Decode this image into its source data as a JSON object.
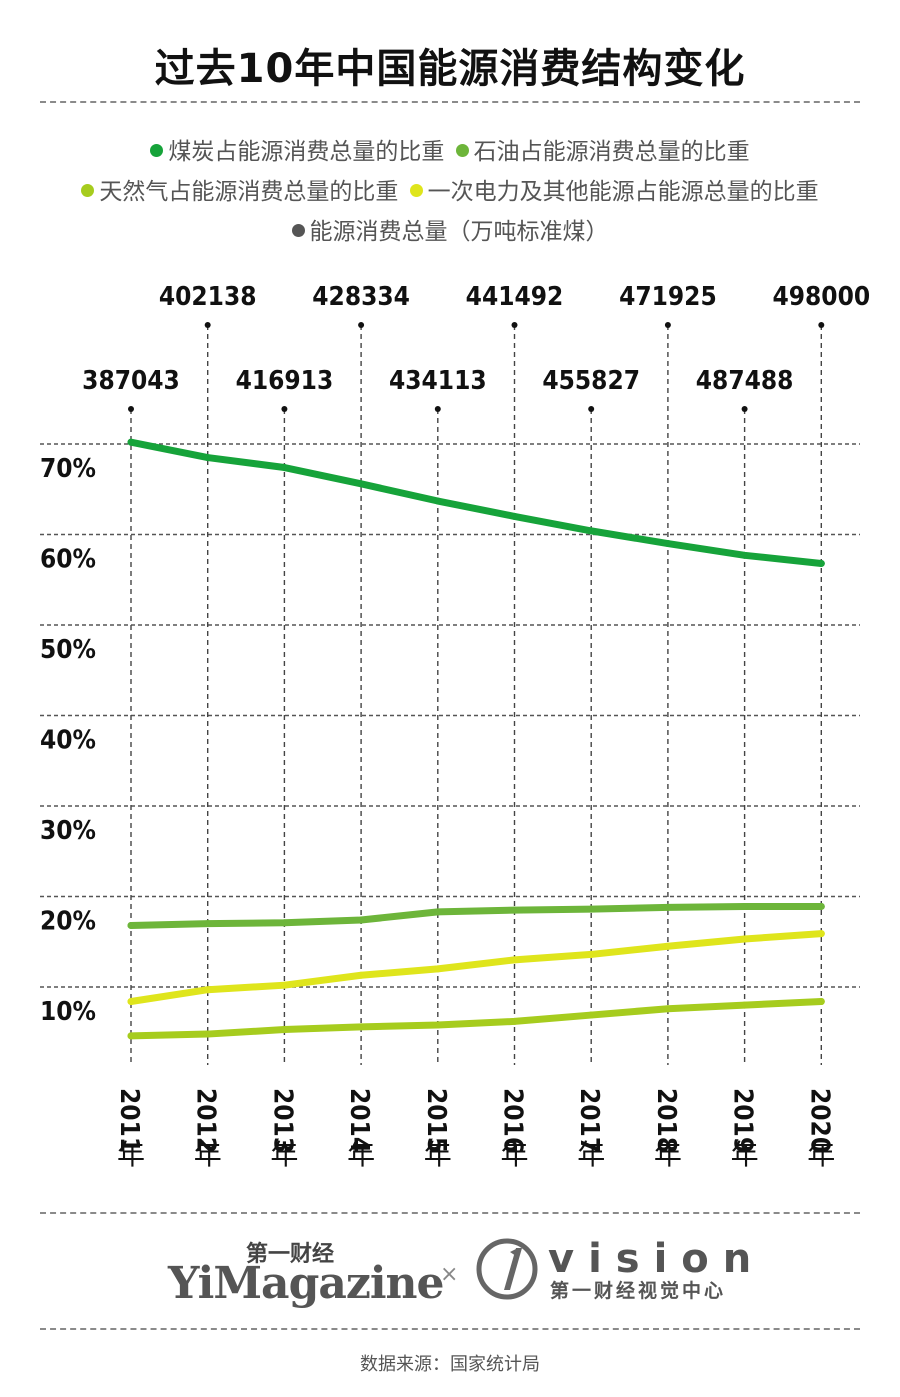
{
  "title": "过去10年中国能源消费结构变化",
  "legend": [
    {
      "label": "煤炭占能源消费总量的比重",
      "color": "#16a33a"
    },
    {
      "label": "石油占能源消费总量的比重",
      "color": "#6db53a"
    },
    {
      "label": "天然气占能源消费总量的比重",
      "color": "#a6cc1e"
    },
    {
      "label": "一次电力及其他能源占能源总量的比重",
      "color": "#dfe51c"
    },
    {
      "label": "能源消费总量（万吨标准煤）",
      "color": "#555555"
    }
  ],
  "chart_data": {
    "type": "line",
    "categories": [
      "2011年",
      "2012年",
      "2013年",
      "2014年",
      "2015年",
      "2016年",
      "2017年",
      "2018年",
      "2019年",
      "2020年"
    ],
    "year_labels": [
      "2011",
      "2012",
      "2013",
      "2014",
      "2015",
      "2016",
      "2017",
      "2018",
      "2019",
      "2020"
    ],
    "year_suffix": "年",
    "yticks": [
      "10%",
      "20%",
      "30%",
      "40%",
      "50%",
      "60%",
      "70%"
    ],
    "ylim": [
      5,
      75
    ],
    "series": [
      {
        "name": "煤炭占能源消费总量的比重",
        "color": "#16a33a",
        "values": [
          70.2,
          68.5,
          67.4,
          65.6,
          63.7,
          62.0,
          60.4,
          59.0,
          57.7,
          56.8
        ]
      },
      {
        "name": "石油占能源消费总量的比重",
        "color": "#6db53a",
        "values": [
          16.8,
          17.0,
          17.1,
          17.4,
          18.3,
          18.5,
          18.6,
          18.8,
          18.9,
          18.9
        ]
      },
      {
        "name": "天然气占能源消费总量的比重",
        "color": "#a6cc1e",
        "values": [
          4.6,
          4.8,
          5.3,
          5.6,
          5.8,
          6.2,
          6.9,
          7.6,
          8.0,
          8.4
        ]
      },
      {
        "name": "一次电力及其他能源占能源总量的比重",
        "color": "#dfe51c",
        "values": [
          8.4,
          9.7,
          10.2,
          11.3,
          12.0,
          13.0,
          13.6,
          14.5,
          15.3,
          15.9
        ]
      }
    ],
    "totals": {
      "name": "能源消费总量（万吨标准煤）",
      "values": [
        "387043",
        "402138",
        "416913",
        "428334",
        "434113",
        "441492",
        "455827",
        "471925",
        "487488",
        "498000"
      ]
    }
  },
  "footer": {
    "brand_cn": "第一财经",
    "brand_en": "YiMagazine",
    "separator": "×",
    "vision_word": "vision",
    "vision_cn": "第一财经视觉中心",
    "source": "数据来源：国家统计局"
  }
}
